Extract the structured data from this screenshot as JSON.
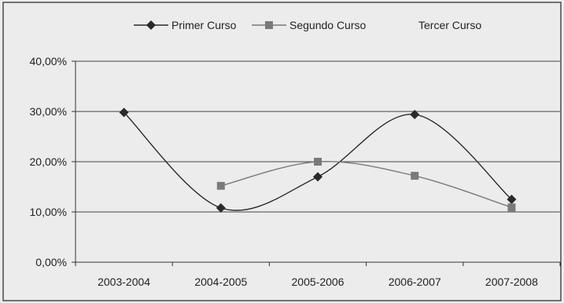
{
  "chart_data": {
    "type": "line",
    "categories": [
      "2003-2004",
      "2004-2005",
      "2005-2006",
      "2006-2007",
      "2007-2008"
    ],
    "series": [
      {
        "name": "Primer Curso",
        "values": [
          29.8,
          10.8,
          17.0,
          29.4,
          12.5
        ],
        "color": "#2a2a2a",
        "marker": "diamond"
      },
      {
        "name": "Segundo Curso",
        "values": [
          null,
          15.2,
          20.0,
          17.2,
          10.9
        ],
        "color": "#7a7a7a",
        "marker": "square"
      },
      {
        "name": "Tercer Curso",
        "values": [
          null,
          null,
          null,
          null,
          null
        ],
        "color": "#ececec",
        "marker": "none"
      }
    ],
    "ylim": [
      0,
      40
    ],
    "yticks": [
      "0,00%",
      "10,00%",
      "20,00%",
      "30,00%",
      "40,00%"
    ],
    "ytick_values": [
      0,
      10,
      20,
      30,
      40
    ],
    "grid": true,
    "legend_position": "top",
    "smooth": true
  }
}
